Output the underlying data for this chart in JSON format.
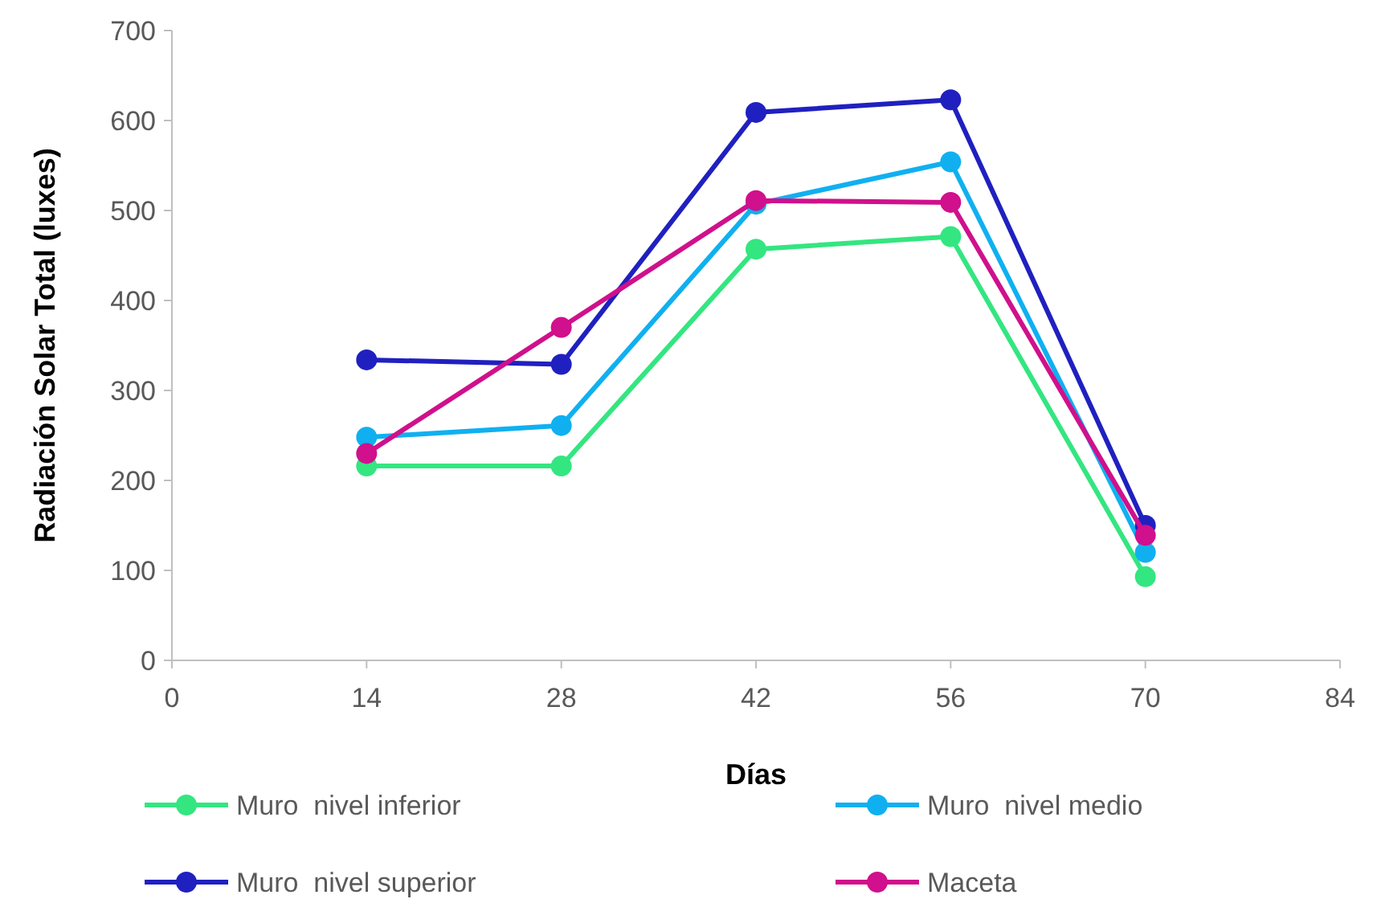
{
  "chart_data": {
    "type": "line",
    "xlabel": "Días",
    "ylabel": "Radiación Solar Total (luxes)",
    "x": [
      14,
      28,
      42,
      56,
      70
    ],
    "xlim": [
      0,
      84
    ],
    "xticks": [
      0,
      14,
      28,
      42,
      56,
      70,
      84
    ],
    "ylim": [
      0,
      700
    ],
    "yticks": [
      0,
      100,
      200,
      300,
      400,
      500,
      600,
      700
    ],
    "grid": false,
    "legend": "bottom",
    "marker": "circle",
    "line_style": "solid",
    "series": [
      {
        "name": "Muro  nivel inferior",
        "color": "#33e680",
        "values": [
          216,
          216,
          457,
          471,
          93
        ]
      },
      {
        "name": "Muro  nivel medio",
        "color": "#10b0f0",
        "values": [
          248,
          261,
          507,
          554,
          120
        ]
      },
      {
        "name": "Muro  nivel superior",
        "color": "#2020c0",
        "values": [
          334,
          329,
          609,
          623,
          150
        ]
      },
      {
        "name": "Maceta",
        "color": "#d0108c",
        "values": [
          230,
          370,
          511,
          509,
          139
        ]
      }
    ]
  }
}
